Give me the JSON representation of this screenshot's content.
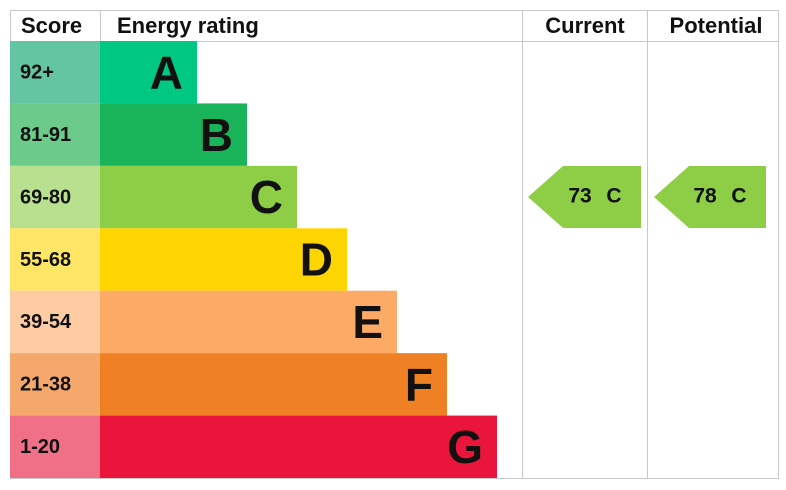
{
  "header": {
    "score": "Score",
    "rating": "Energy rating",
    "current": "Current",
    "potential": "Potential"
  },
  "bands": [
    {
      "range": "92+",
      "letter": "A"
    },
    {
      "range": "81-91",
      "letter": "B"
    },
    {
      "range": "69-80",
      "letter": "C"
    },
    {
      "range": "55-68",
      "letter": "D"
    },
    {
      "range": "39-54",
      "letter": "E"
    },
    {
      "range": "21-38",
      "letter": "F"
    },
    {
      "range": "1-20",
      "letter": "G"
    }
  ],
  "current": {
    "score": 73,
    "letter": "C"
  },
  "potential": {
    "score": 78,
    "letter": "C"
  }
}
